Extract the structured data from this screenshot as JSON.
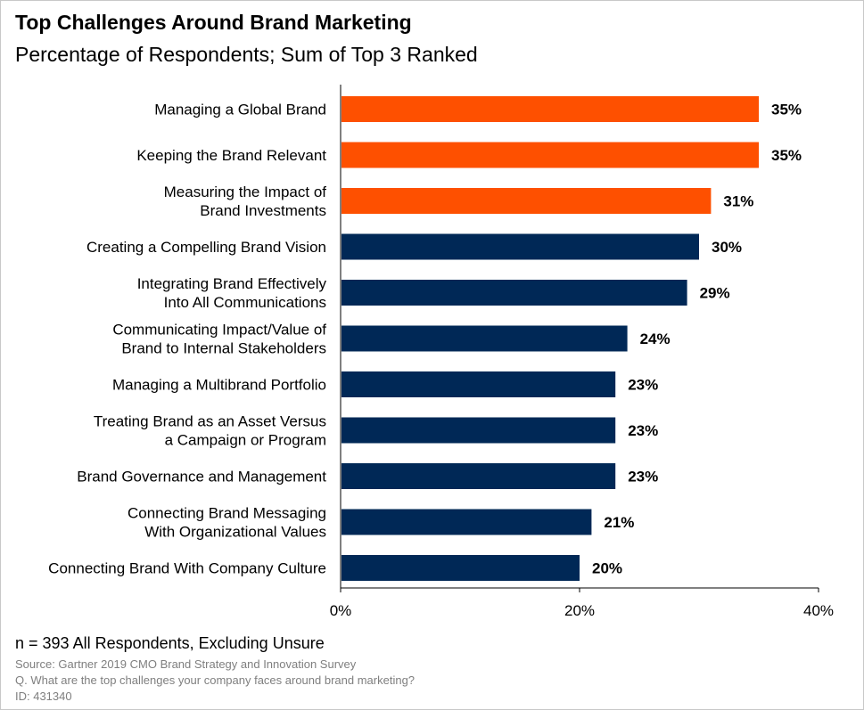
{
  "chart_data": {
    "type": "bar",
    "orientation": "horizontal",
    "title": "Top Challenges Around Brand Marketing",
    "subtitle": "Percentage of Respondents; Sum of Top 3 Ranked",
    "categories": [
      "Managing a Global Brand",
      "Keeping the Brand Relevant",
      "Measuring the Impact of\nBrand Investments",
      "Creating a Compelling Brand Vision",
      "Integrating Brand Effectively\nInto All Communications",
      "Communicating Impact/Value of\nBrand to Internal Stakeholders",
      "Managing a Multibrand Portfolio",
      "Treating Brand as an Asset Versus\na Campaign or Program",
      "Brand Governance and Management",
      "Connecting Brand Messaging\nWith Organizational Values",
      "Connecting Brand With Company Culture"
    ],
    "values": [
      35,
      35,
      31,
      30,
      29,
      24,
      23,
      23,
      23,
      21,
      20
    ],
    "value_labels": [
      "35%",
      "35%",
      "31%",
      "30%",
      "29%",
      "24%",
      "23%",
      "23%",
      "23%",
      "21%",
      "20%"
    ],
    "highlight_count": 3,
    "colors": {
      "highlight": "#fe5000",
      "default": "#002856",
      "axis": "#000000"
    },
    "xlim": [
      0,
      40
    ],
    "xticks": [
      0,
      20,
      40
    ],
    "xtick_labels": [
      "0%",
      "20%",
      "40%"
    ],
    "grid": false,
    "xlabel": "",
    "ylabel": ""
  },
  "footer": {
    "sample": "n = 393 All Respondents, Excluding Unsure",
    "source": "Source: Gartner 2019 CMO Brand Strategy and Innovation Survey",
    "question": "Q. What are the top challenges your company faces around brand marketing?",
    "id": "ID: 431340"
  }
}
